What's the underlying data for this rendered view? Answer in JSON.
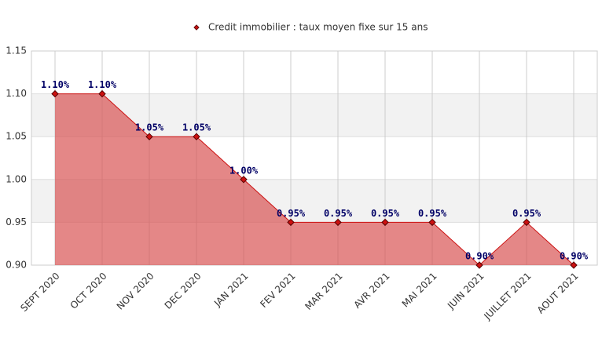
{
  "chart_data": {
    "type": "area",
    "categories": [
      "SEPT 2020",
      "OCT 2020",
      "NOV 2020",
      "DEC 2020",
      "JAN 2021",
      "FEV 2021",
      "MAR 2021",
      "AVR 2021",
      "MAI 2021",
      "JUIN 2021",
      "JUILLET 2021",
      "AOUT 2021"
    ],
    "series": [
      {
        "name": "Credit immobilier : taux moyen fixe sur 15 ans",
        "color": "#cc1111",
        "values": [
          1.1,
          1.1,
          1.05,
          1.05,
          1.0,
          0.95,
          0.95,
          0.95,
          0.95,
          0.9,
          0.95,
          0.9
        ],
        "value_labels": [
          "1.10%",
          "1.10%",
          "1.05%",
          "1.05%",
          "1.00%",
          "0.95%",
          "0.95%",
          "0.95%",
          "0.95%",
          "0.90%",
          "0.95%",
          "0.90%"
        ]
      }
    ],
    "ylim": [
      0.9,
      1.15
    ],
    "yticks": [
      {
        "value": 0.9,
        "label": "0.90"
      },
      0.95,
      {
        "value": 1.0,
        "label": "1.00"
      },
      1.05,
      {
        "value": 1.1,
        "label": "1.10"
      },
      1.15
    ],
    "grid": true,
    "legend": "top"
  }
}
